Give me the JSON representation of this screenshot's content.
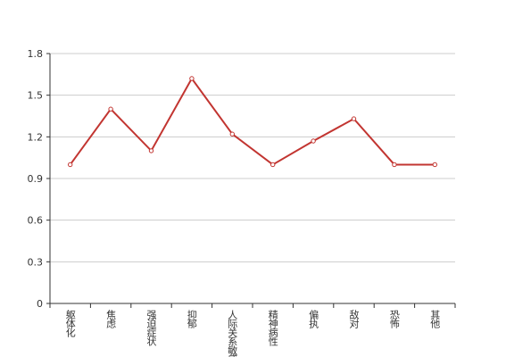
{
  "chart_data": {
    "type": "line",
    "categories": [
      "躯体化",
      "焦虑",
      "强迫症状",
      "抑郁",
      "人际关系敏感",
      "精神病性",
      "偏执",
      "敌对",
      "恐怖",
      "其他"
    ],
    "values": [
      1.0,
      1.4,
      1.1,
      1.62,
      1.22,
      1.0,
      1.17,
      1.33,
      1.0,
      1.0
    ],
    "color": "#c23531",
    "ylim": [
      0,
      1.8
    ],
    "yticks": [
      0,
      0.3,
      0.6,
      0.9,
      1.2,
      1.5,
      1.8
    ],
    "grid": true
  }
}
